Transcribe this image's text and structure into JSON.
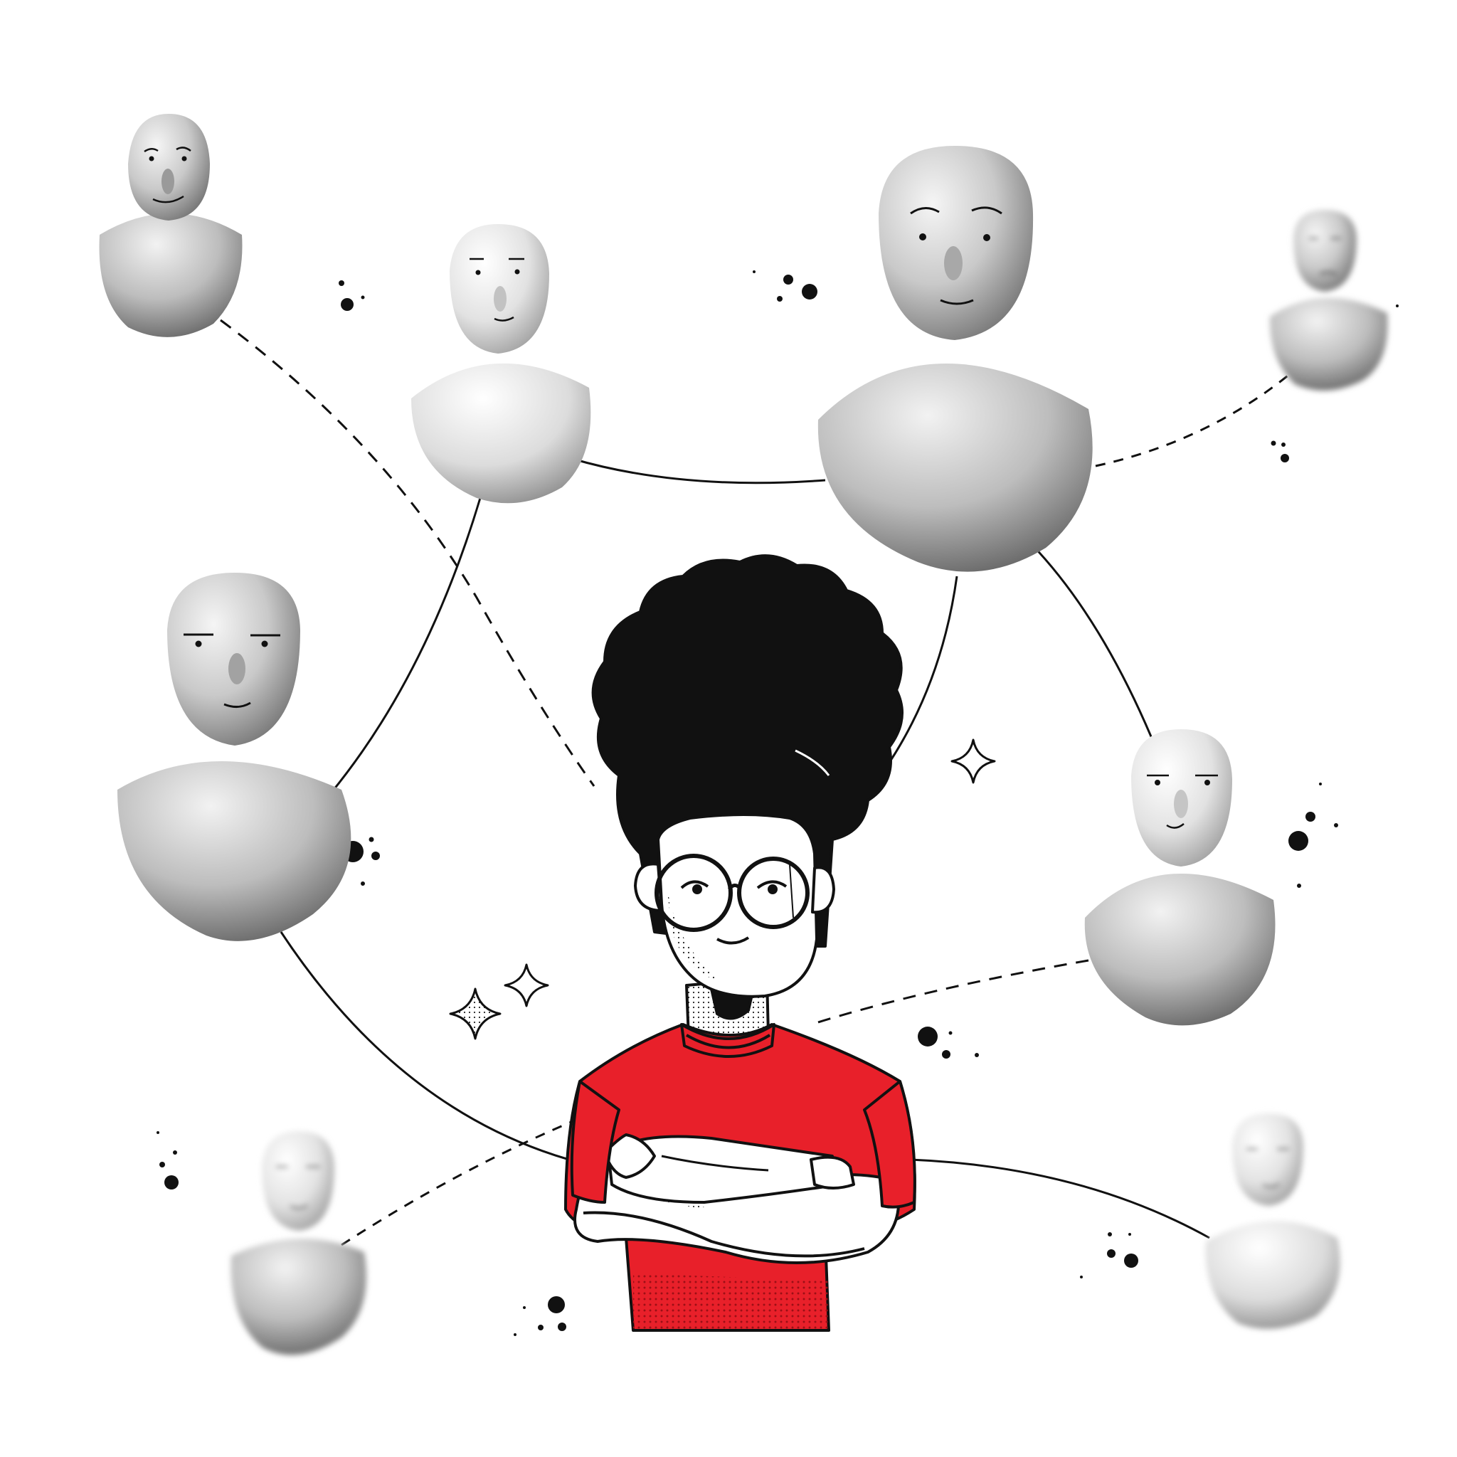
{
  "scene": {
    "name": "people-network",
    "nodes": [
      "person-1",
      "person-2",
      "person-3",
      "person-4",
      "person-5",
      "person-6",
      "person-7",
      "person-8"
    ],
    "center": "central-person",
    "connector_styles": [
      "solid",
      "dashed"
    ]
  },
  "colors": {
    "background": "#ffffff",
    "shirt": "#e8202a",
    "shirt_shadow": "#b4141c",
    "ink": "#111111",
    "skin": "#ffffff",
    "figure_light": "#ececec",
    "figure_mid": "#b8b8b8",
    "figure_dark": "#6f6f6f"
  },
  "icons": [
    "sparkle-icon",
    "dot-cluster-icon"
  ]
}
